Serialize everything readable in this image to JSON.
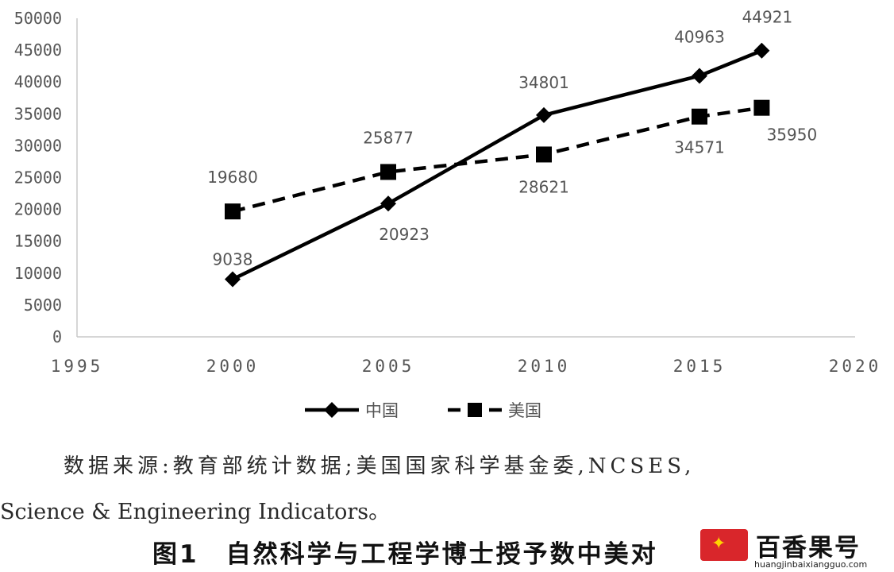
{
  "chart_data": {
    "type": "line",
    "xlim": [
      1995,
      2020
    ],
    "ylim": [
      0,
      50000
    ],
    "x_ticks": [
      "1995",
      "2000",
      "2005",
      "2010",
      "2015",
      "2020"
    ],
    "y_ticks": [
      "0",
      "5000",
      "10000",
      "15000",
      "20000",
      "25000",
      "30000",
      "35000",
      "40000",
      "45000",
      "50000"
    ],
    "grid": false,
    "legend_position": "bottom",
    "series": [
      {
        "name": "中国",
        "marker": "diamond",
        "line_style": "solid",
        "color": "#000000",
        "x": [
          2000,
          2005,
          2010,
          2015,
          2017
        ],
        "y": [
          9038,
          20923,
          34801,
          40963,
          44921
        ],
        "labels": [
          "9038",
          "20923",
          "34801",
          "40963",
          "44921"
        ]
      },
      {
        "name": "美国",
        "marker": "square",
        "line_style": "dashed",
        "color": "#000000",
        "x": [
          2000,
          2005,
          2010,
          2015,
          2017
        ],
        "y": [
          19680,
          25877,
          28621,
          34571,
          35950
        ],
        "labels": [
          "19680",
          "25877",
          "28621",
          "34571",
          "35950"
        ]
      }
    ]
  },
  "source_line1": "数据来源:教育部统计数据;美国国家科学基金委,NCSES,",
  "source_line2": "Science & Engineering Indicators。",
  "figure_title": "图1　自然科学与工程学博士授予数中美对",
  "watermark": {
    "name": "百香果号",
    "url": "huangjinbaixiangguo.com"
  }
}
